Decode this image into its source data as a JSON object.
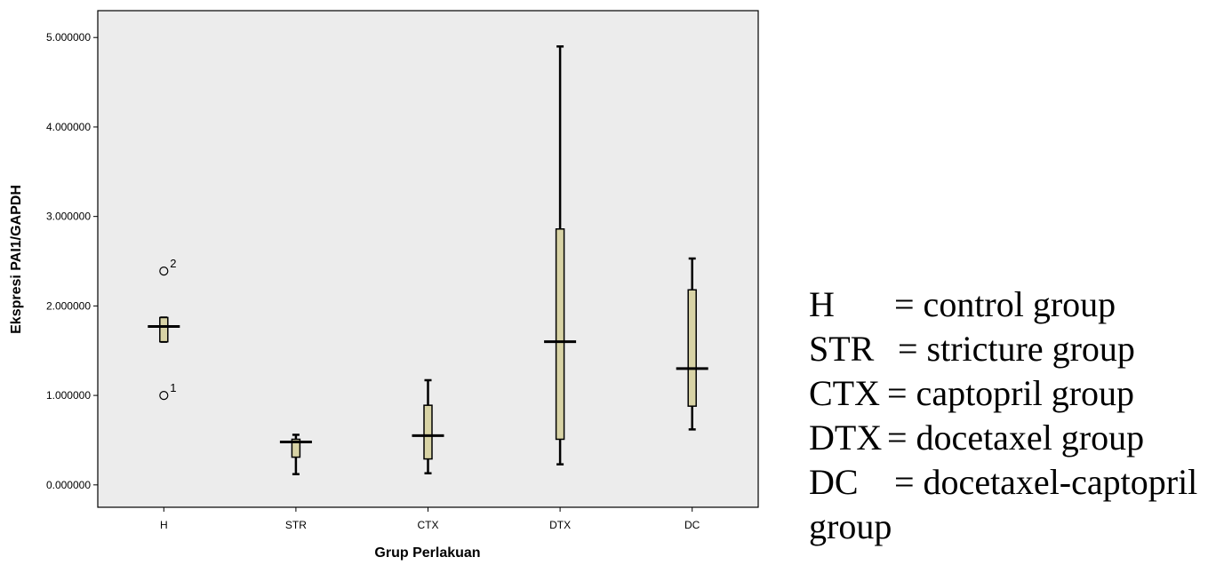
{
  "chart_data": {
    "type": "boxplot",
    "xlabel": "Grup Perlakuan",
    "ylabel": "Ekspresi PAI1/GAPDH",
    "ylim": [
      -0.25,
      5.3
    ],
    "yticks": [
      "0.000000",
      "1.000000",
      "2.000000",
      "3.000000",
      "4.000000",
      "5.000000"
    ],
    "ytick_values": [
      0,
      1,
      2,
      3,
      4,
      5
    ],
    "plot_background": "#ececec",
    "box_fill": "#d8d3a5",
    "categories": [
      "H",
      "STR",
      "CTX",
      "DTX",
      "DC"
    ],
    "boxes": [
      {
        "category": "H",
        "whisker_low": 1.6,
        "q1": 1.6,
        "median": 1.77,
        "q3": 1.87,
        "whisker_high": 1.87,
        "outliers": [
          {
            "value": 2.39,
            "label": "2"
          },
          {
            "value": 1.0,
            "label": "1"
          }
        ]
      },
      {
        "category": "STR",
        "whisker_low": 0.12,
        "q1": 0.31,
        "median": 0.48,
        "q3": 0.51,
        "whisker_high": 0.56,
        "outliers": []
      },
      {
        "category": "CTX",
        "whisker_low": 0.13,
        "q1": 0.29,
        "median": 0.55,
        "q3": 0.89,
        "whisker_high": 1.17,
        "outliers": []
      },
      {
        "category": "DTX",
        "whisker_low": 0.23,
        "q1": 0.51,
        "median": 1.6,
        "q3": 2.86,
        "whisker_high": 4.9,
        "outliers": []
      },
      {
        "category": "DC",
        "whisker_low": 0.62,
        "q1": 0.88,
        "median": 1.3,
        "q3": 2.18,
        "whisker_high": 2.53,
        "outliers": []
      }
    ]
  },
  "legend": [
    {
      "abbr": "H",
      "text": "= control group"
    },
    {
      "abbr": "STR",
      "text": "= stricture group"
    },
    {
      "abbr": "CTX",
      "text": "= captopril group"
    },
    {
      "abbr": "DTX",
      "text": "= docetaxel group"
    },
    {
      "abbr": "DC",
      "text": "= docetaxel-captopril"
    },
    {
      "abbr": "",
      "text": "group"
    }
  ]
}
